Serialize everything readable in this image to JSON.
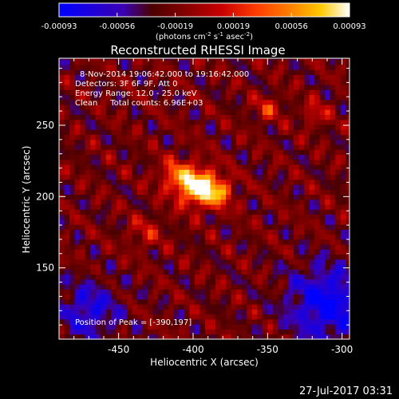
{
  "chart_data": {
    "type": "heatmap",
    "title": "Reconstructed RHESSI Image",
    "xlabel": "Heliocentric X (arcsec)",
    "ylabel": "Heliocentric Y (arcsec)",
    "xlim": [
      -490,
      -295
    ],
    "ylim": [
      100,
      297
    ],
    "xticks": [
      -450,
      -400,
      -350,
      -300
    ],
    "yticks": [
      150,
      200,
      250
    ],
    "colorbar": {
      "range": [
        -0.00093,
        0.00093
      ],
      "ticks": [
        "-0.00093",
        "-0.00056",
        "-0.00019",
        "0.00019",
        "0.00056",
        "0.00093"
      ],
      "units_prefix": "(photons cm",
      "units_sup1": "-2",
      "units_mid": " s",
      "units_sup2": "-1",
      "units_mid2": " asec",
      "units_sup3": "-2",
      "units_suffix": ")",
      "colormap": [
        "#0000ff",
        "#3a00b4",
        "#4b0000",
        "#8c0000",
        "#c80000",
        "#ff3c00",
        "#ff8200",
        "#ffc800",
        "#ffffff"
      ]
    },
    "annotations": [
      "8-Nov-2014 19:06:42.000 to 19:16:42.000",
      "Detectors: 3F 6F 9F, Att 0",
      "Energy Range: 12.0 - 25.0 keV",
      "Clean     Total counts: 6.96E+03"
    ],
    "peak_label": "Position of Peak = [-390,197]",
    "peak": [
      -390,
      197
    ],
    "sources": [
      {
        "x": -397,
        "y": 207,
        "amp": 1.0,
        "sigma": 9
      },
      {
        "x": -383,
        "y": 203,
        "amp": 0.55,
        "sigma": 7
      },
      {
        "x": -412,
        "y": 215,
        "amp": 0.45,
        "sigma": 8
      },
      {
        "x": -350,
        "y": 262,
        "amp": 0.35,
        "sigma": 6
      },
      {
        "x": -318,
        "y": 258,
        "amp": 0.3,
        "sigma": 6
      },
      {
        "x": -432,
        "y": 175,
        "amp": 0.25,
        "sigma": 8
      }
    ],
    "negative_regions": [
      {
        "x": -310,
        "y": 125,
        "amp": 0.7,
        "sigma": 18
      },
      {
        "x": -470,
        "y": 120,
        "amp": 0.5,
        "sigma": 14
      }
    ]
  },
  "footer_date": "27-Jul-2017 03:31"
}
